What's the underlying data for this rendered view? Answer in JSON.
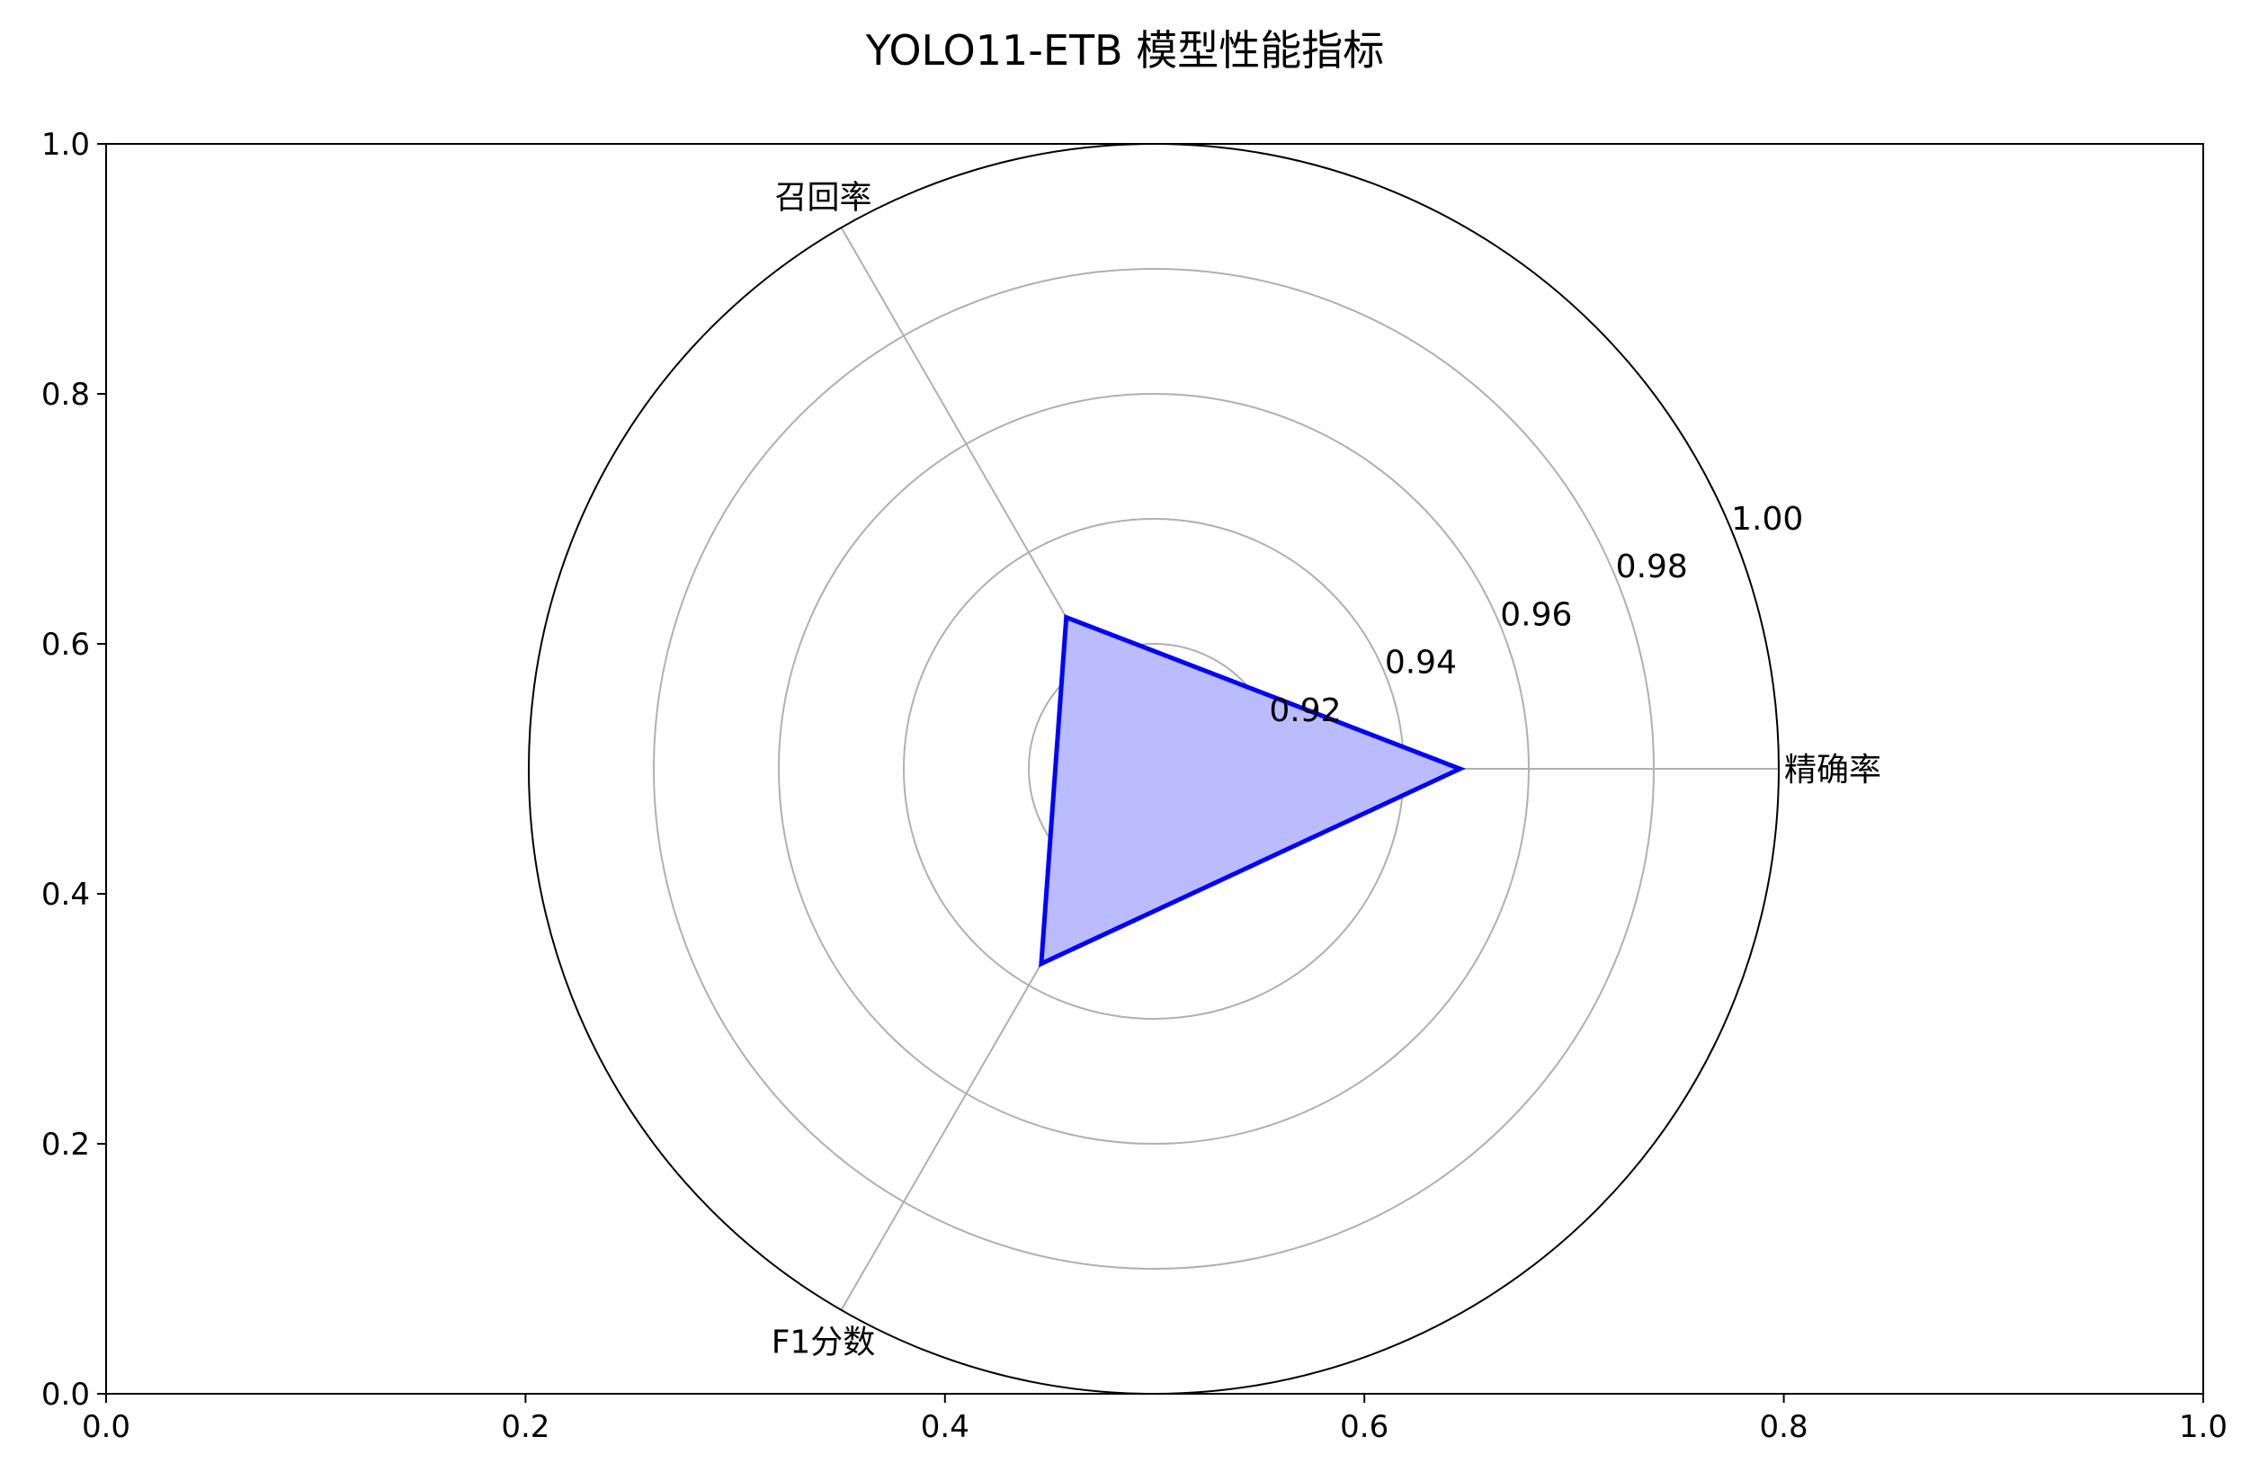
{
  "chart_data": {
    "type": "radar",
    "title": "YOLO11-ETB 模型性能指标",
    "axes": [
      "精确率",
      "召回率",
      "F1分数"
    ],
    "series": [
      {
        "values": [
          0.949,
          0.928,
          0.936
        ],
        "color": "#0000ff",
        "fill": "#bbbbff"
      }
    ],
    "rlim": [
      0.9,
      1.0
    ],
    "r_ticks": [
      "0.92",
      "0.94",
      "0.96",
      "0.98",
      "1.00"
    ],
    "r_tick_values": [
      0.92,
      0.94,
      0.96,
      0.98,
      1.0
    ],
    "grid": true,
    "background_axes": {
      "xlim": [
        0.0,
        1.0
      ],
      "ylim": [
        0.0,
        1.0
      ],
      "x_ticks": [
        "0.0",
        "0.2",
        "0.4",
        "0.6",
        "0.8",
        "1.0"
      ],
      "y_ticks": [
        "0.0",
        "0.2",
        "0.4",
        "0.6",
        "0.8",
        "1.0"
      ]
    }
  }
}
